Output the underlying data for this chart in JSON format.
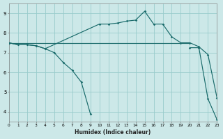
{
  "bg_color": "#cce8e8",
  "grid_color": "#99cccc",
  "line_color": "#1a6b6b",
  "xlim": [
    0,
    23
  ],
  "ylim": [
    3.5,
    9.5
  ],
  "xticks": [
    0,
    1,
    2,
    3,
    4,
    5,
    6,
    7,
    8,
    9,
    10,
    11,
    12,
    13,
    14,
    15,
    16,
    17,
    18,
    19,
    20,
    21,
    22,
    23
  ],
  "yticks": [
    4,
    5,
    6,
    7,
    8,
    9
  ],
  "xlabel": "Humidex (Indice chaleur)",
  "curve1_x": [
    0,
    1,
    2,
    3,
    4,
    5,
    6,
    7,
    8,
    9
  ],
  "curve1_y": [
    7.5,
    7.4,
    7.4,
    7.35,
    7.2,
    7.0,
    6.5,
    6.1,
    5.5,
    3.9
  ],
  "curve2_x": [
    0,
    1,
    2,
    3,
    4,
    10,
    11,
    12,
    13,
    14,
    15,
    16,
    17,
    18,
    19,
    20,
    21,
    22,
    23
  ],
  "curve2_y": [
    7.5,
    7.4,
    7.4,
    7.35,
    7.2,
    8.45,
    8.45,
    8.5,
    8.6,
    8.65,
    9.1,
    8.45,
    8.45,
    7.8,
    7.5,
    7.5,
    7.3,
    6.9,
    4.7
  ],
  "curve3_x": [
    0,
    20
  ],
  "curve3_y": [
    7.5,
    7.5
  ],
  "curve4_x": [
    20,
    21,
    22,
    23
  ],
  "curve4_y": [
    7.25,
    7.25,
    4.65,
    3.6
  ]
}
